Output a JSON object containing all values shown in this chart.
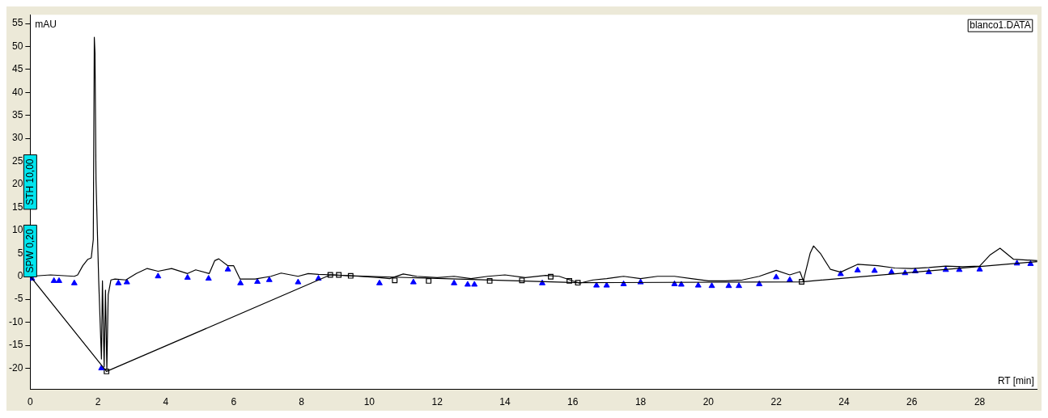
{
  "chart_data": {
    "type": "line",
    "xlabel": "RT [min]",
    "ylabel": "mAU",
    "annotations": [
      "blanco1.DATA",
      "STH 10,00",
      "SPW 0,20"
    ],
    "xlim": [
      0,
      29.7
    ],
    "ylim": [
      -24.6,
      56.9
    ],
    "xticks": [
      0,
      2,
      4,
      6,
      8,
      10,
      12,
      14,
      16,
      18,
      20,
      22,
      24,
      26,
      28
    ],
    "yticks": [
      -20,
      -15,
      -10,
      -5,
      0,
      5,
      10,
      15,
      20,
      25,
      30,
      35,
      40,
      45,
      50,
      55
    ],
    "grid": false,
    "legend": false,
    "series": [
      {
        "type": "line",
        "color": "#000000",
        "marker": "none",
        "x": [
          0,
          0.6,
          1.3,
          1.4,
          1.55,
          1.7,
          1.8,
          1.86,
          1.89,
          1.91,
          1.94,
          2.02,
          2.1,
          2.13,
          2.18,
          2.22,
          2.26,
          2.3,
          2.38,
          2.5,
          2.82,
          3.13,
          3.45,
          3.77,
          4.17,
          4.64,
          4.88,
          5.28,
          5.44,
          5.56,
          5.83,
          6.0,
          6.19,
          6.63,
          7.1,
          7.4,
          7.9,
          8.2,
          8.5,
          9.0,
          9.7,
          10.3,
          10.6,
          11.0,
          11.4,
          12.0,
          12.5,
          13.0,
          13.5,
          14.0,
          14.6,
          15.2,
          15.6,
          16.2,
          16.6,
          17.0,
          17.5,
          18.0,
          18.5,
          19.0,
          19.5,
          20.0,
          20.5,
          21.0,
          21.5,
          22.0,
          22.4,
          22.7,
          22.8,
          23.0,
          23.1,
          23.3,
          23.6,
          23.9,
          24.4,
          25.0,
          25.5,
          26.0,
          26.5,
          27.0,
          27.5,
          28.0,
          28.3,
          28.6,
          29.0,
          29.7
        ],
        "values": [
          0,
          0.3,
          0,
          0.3,
          2.3,
          3.7,
          4,
          8,
          52,
          48.6,
          21,
          -1,
          -18,
          -1,
          -19.7,
          -3,
          -20.3,
          -4,
          -0.8,
          -0.6,
          -0.8,
          0.6,
          1.7,
          1.1,
          1.7,
          0.6,
          1.4,
          0.6,
          3.4,
          3.8,
          2.3,
          2.3,
          -0.6,
          -0.6,
          0,
          0.7,
          0,
          0.6,
          0.4,
          0.3,
          0,
          -0.3,
          -0.5,
          0.5,
          0,
          -0.3,
          0,
          -0.5,
          0,
          0.3,
          -0.3,
          0.2,
          0,
          -1.5,
          -0.8,
          -0.5,
          0,
          -0.5,
          0,
          0,
          -0.5,
          -1,
          -1,
          -0.8,
          0,
          1.3,
          0.3,
          1,
          -1,
          5,
          6.6,
          5,
          1.5,
          0.9,
          2.6,
          2.3,
          1.8,
          1.7,
          1.9,
          2.2,
          2.1,
          2.2,
          4.6,
          6.1,
          3.7,
          3.4
        ]
      },
      {
        "type": "line",
        "color": "#000000",
        "marker": "none",
        "x": [
          0,
          2.25,
          8.85,
          9.45,
          16.15,
          22.75,
          29.7
        ],
        "values": [
          0,
          -20.7,
          0.3,
          0.1,
          -1.4,
          -1.2,
          3.2
        ]
      },
      {
        "type": "scatter",
        "color": "#0000ff",
        "marker": "triangle",
        "x": [
          0.05,
          0.7,
          0.85,
          1.3,
          2.1,
          2.6,
          2.85,
          3.77,
          4.64,
          5.26,
          5.83,
          6.2,
          6.7,
          7.05,
          7.9,
          8.5,
          10.3,
          11.3,
          12.5,
          12.9,
          13.1,
          15.1,
          16.7,
          17.0,
          17.5,
          18.0,
          19.0,
          19.2,
          19.7,
          20.1,
          20.6,
          20.9,
          21.5,
          22.0,
          22.4,
          23.9,
          24.4,
          24.9,
          25.4,
          25.8,
          26.1,
          26.5,
          27.0,
          27.4,
          28.0,
          29.1,
          29.5
        ],
        "values": [
          -0.5,
          -1,
          -1,
          -1.5,
          -20,
          -1.5,
          -1.3,
          0,
          -0.3,
          -0.5,
          1.5,
          -1.5,
          -1.2,
          -0.8,
          -1.3,
          -0.5,
          -1.5,
          -1.3,
          -1.5,
          -1.8,
          -1.8,
          -1.5,
          -2,
          -2,
          -1.7,
          -1.3,
          -1.7,
          -1.8,
          -2,
          -2.1,
          -2.1,
          -2.1,
          -1.7,
          -0.2,
          -0.8,
          0.5,
          1.3,
          1.2,
          0.9,
          0.7,
          1.1,
          0.9,
          1.4,
          1.4,
          1.5,
          2.8,
          2.7
        ]
      },
      {
        "type": "scatter",
        "color": "#000000",
        "marker": "square",
        "x": [
          2.25,
          8.85,
          9.1,
          9.45,
          10.75,
          11.75,
          13.55,
          14.5,
          15.35,
          15.9,
          16.15,
          22.75
        ],
        "values": [
          -20.7,
          0.3,
          0.3,
          0.1,
          -0.9,
          -1,
          -1,
          -0.9,
          -0.1,
          -1,
          -1.4,
          -1.2
        ]
      }
    ]
  }
}
